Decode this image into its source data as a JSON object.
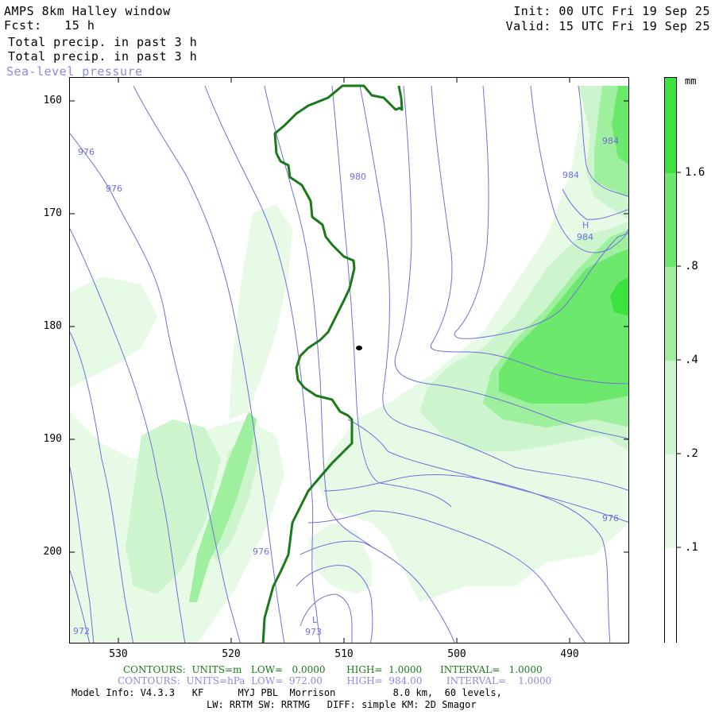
{
  "header": {
    "title": "AMPS 8km Halley window",
    "forecast": "Fcst:   15 h",
    "field1": "Total precip. in past 3 h",
    "field2": "Total precip. in past 3 h",
    "field3": "Sea-level pressure",
    "init": "Init: 00 UTC Fri 19 Sep 25",
    "valid": "Valid: 15 UTC Fri 19 Sep 25"
  },
  "axes": {
    "y_ticks": [
      "160",
      "170",
      "180",
      "190",
      "200"
    ],
    "x_ticks": [
      "530",
      "520",
      "510",
      "500",
      "490"
    ]
  },
  "colorbar": {
    "unit": "mm",
    "labels": [
      "1.6",
      ".8",
      ".4",
      ".2",
      ".1"
    ],
    "colors": [
      "#ffffff",
      "#e6fae6",
      "#cdf5cd",
      "#9eef9e",
      "#6ce86c",
      "#3ee23e"
    ]
  },
  "contour_labels": {
    "isobar_976_a": "976",
    "isobar_976_b": "976",
    "isobar_980": "980",
    "isobar_984_a": "984",
    "isobar_984_b": "984",
    "isobar_984_c": "984",
    "high_marker": "H",
    "low_marker": "L",
    "isobar_973": "973",
    "isobar_976_c": "976",
    "isobar_976_d": "976",
    "isobar_972": "972"
  },
  "footer": {
    "contours_m": "CONTOURS:  UNITS=m   LOW=   0.0000       HIGH=  1.0000      INTERVAL=   1.0000",
    "contours_hpa": "CONTOURS:  UNITS=hPa  LOW=  972.00        HIGH=  984.00        INTERVAL=    1.0000",
    "model_info": "Model Info: V4.3.3   KF      MYJ PBL  Morrison          8.0 km,  60 levels,",
    "physics": "LW: RRTM SW: RRTMG   DIFF: simple KM: 2D Smagor"
  },
  "style": {
    "isobar_color": "#7070dd",
    "coast_color": "#1a7a1a",
    "header_lilac": "#8a8ae6"
  }
}
